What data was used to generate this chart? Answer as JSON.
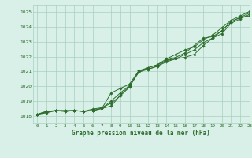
{
  "bg_color": "#d8f0e8",
  "grid_color": "#aacfbf",
  "line_color": "#2d6e2d",
  "title": "Graphe pression niveau de la mer (hPa)",
  "xlim": [
    -0.5,
    23
  ],
  "ylim": [
    1017.5,
    1025.5
  ],
  "xticks": [
    0,
    1,
    2,
    3,
    4,
    5,
    6,
    7,
    8,
    9,
    10,
    11,
    12,
    13,
    14,
    15,
    16,
    17,
    18,
    19,
    20,
    21,
    22,
    23
  ],
  "yticks": [
    1018,
    1019,
    1020,
    1021,
    1022,
    1023,
    1024,
    1025
  ],
  "series": [
    [
      1018.1,
      1018.2,
      1018.35,
      1018.35,
      1018.35,
      1018.3,
      1018.35,
      1018.5,
      1018.65,
      1019.4,
      1020.0,
      1020.95,
      1021.25,
      1021.45,
      1021.75,
      1021.85,
      1021.95,
      1022.15,
      1022.75,
      1023.25,
      1023.75,
      1024.35,
      1024.65,
      1024.75
    ],
    [
      1018.1,
      1018.25,
      1018.35,
      1018.35,
      1018.35,
      1018.3,
      1018.35,
      1018.5,
      1019.0,
      1019.55,
      1020.05,
      1020.95,
      1021.15,
      1021.35,
      1021.65,
      1021.85,
      1022.15,
      1022.45,
      1022.95,
      1023.25,
      1023.55,
      1024.25,
      1024.55,
      1024.85
    ],
    [
      1018.1,
      1018.3,
      1018.35,
      1018.3,
      1018.35,
      1018.3,
      1018.45,
      1018.55,
      1018.85,
      1019.35,
      1019.95,
      1021.05,
      1021.25,
      1021.45,
      1021.85,
      1022.15,
      1022.45,
      1022.65,
      1023.15,
      1023.45,
      1023.95,
      1024.45,
      1024.75,
      1025.05
    ],
    [
      1018.1,
      1018.3,
      1018.35,
      1018.3,
      1018.35,
      1018.3,
      1018.35,
      1018.5,
      1019.55,
      1019.85,
      1020.15,
      1021.05,
      1021.15,
      1021.35,
      1021.75,
      1021.95,
      1022.25,
      1022.75,
      1023.25,
      1023.35,
      1023.75,
      1024.35,
      1024.65,
      1024.95
    ]
  ]
}
